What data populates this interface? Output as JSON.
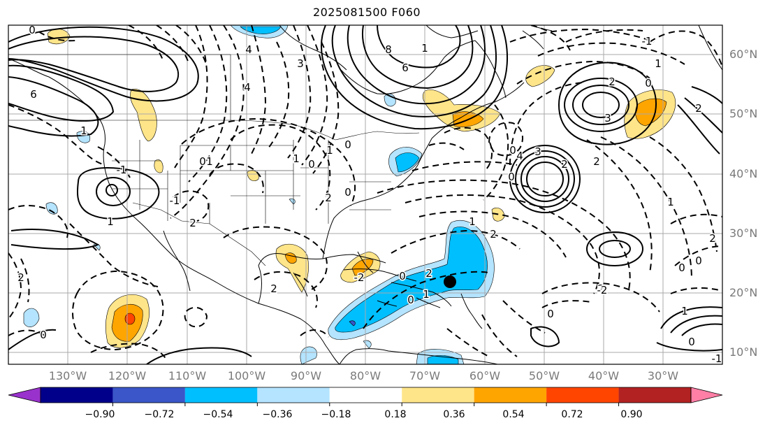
{
  "title": "2025081500 F060",
  "map": {
    "lat_labels": [
      "60°N",
      "50°N",
      "40°N",
      "30°N",
      "20°N",
      "10°N"
    ],
    "lon_labels": [
      "130°W",
      "120°W",
      "110°W",
      "100°W",
      "90°W",
      "80°W",
      "70°W",
      "60°W",
      "50°W",
      "40°W",
      "30°W"
    ],
    "contour_labels": [
      "0",
      "6",
      "1",
      "4",
      "6",
      "8",
      "4",
      "3",
      "1",
      "0",
      "-1",
      "1",
      "-1",
      "2",
      "0",
      "3",
      "2",
      "1",
      "-1",
      "2",
      "0",
      "1",
      "2",
      "3",
      "2",
      "4",
      "0",
      "2",
      "1",
      "0",
      "1",
      "0",
      "-1",
      "2",
      "0",
      "2",
      "0",
      "-2",
      "0",
      "1",
      "2",
      "2",
      "0",
      "1",
      "2",
      "-2",
      "0",
      "0",
      "2",
      "0",
      "1",
      "1",
      "0"
    ],
    "marker": {
      "lon": -65,
      "lat": 22
    }
  },
  "colorbar": {
    "ticks": [
      "−0.90",
      "−0.72",
      "−0.54",
      "−0.36",
      "−0.18",
      "0.18",
      "0.36",
      "0.54",
      "0.72",
      "0.90"
    ],
    "colors": [
      "#9932cc",
      "#00008b",
      "#3a56c8",
      "#00bfff",
      "#b4e4ff",
      "#ffffff",
      "#ffe58a",
      "#ffa500",
      "#ff4500",
      "#b22222",
      "#ff7fa6"
    ]
  }
}
